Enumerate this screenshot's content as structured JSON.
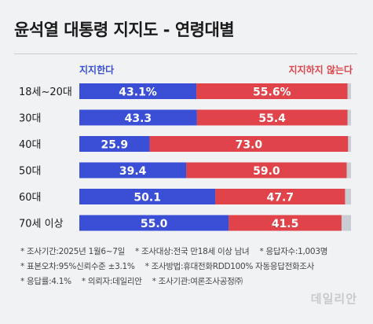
{
  "title": "윤석열 대통령 지지도 - 연령대별",
  "chart_data": {
    "type": "bar",
    "stacked": true,
    "orientation": "horizontal",
    "categories": [
      "18세~20대",
      "30대",
      "40대",
      "50대",
      "60대",
      "70세 이상"
    ],
    "series": [
      {
        "name": "지지한다",
        "color": "#3b4fd6",
        "values": [
          43.1,
          43.3,
          25.9,
          39.4,
          50.1,
          55.0
        ],
        "labels": [
          "43.1%",
          "43.3",
          "25.9",
          "39.4",
          "50.1",
          "55.0"
        ]
      },
      {
        "name": "지지하지 않는다",
        "color": "#e0434a",
        "values": [
          55.6,
          55.4,
          73.0,
          59.0,
          47.7,
          41.5
        ],
        "labels": [
          "55.6%",
          "55.4",
          "73.0",
          "59.0",
          "47.7",
          "41.5"
        ]
      }
    ],
    "remainder_color": "#c9ccd2",
    "xlim": [
      0,
      100
    ]
  },
  "notes": [
    [
      "* 조사기간:2025년 1월6~7일",
      "* 조사대상:전국 만18세 이상 남녀",
      "* 응답자수:1,003명"
    ],
    [
      "* 표본오차:95%신뢰수준 ±3.1%",
      "* 조사방법:휴대전화RDD100% 자동응답전화조사"
    ],
    [
      "* 응답률:4.1%",
      "* 의뢰자:데일리안",
      "* 조사기관:여론조사공정㈜"
    ]
  ],
  "watermark": "데일리안"
}
